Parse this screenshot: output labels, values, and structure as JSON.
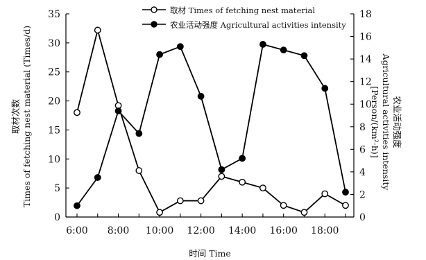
{
  "chart_data": {
    "type": "line",
    "xlabel": "时间 Time",
    "x": [
      "6:00",
      "7:00",
      "8:00",
      "9:00",
      "10:00",
      "11:00",
      "12:00",
      "13:00",
      "14:00",
      "15:00",
      "16:00",
      "17:00",
      "18:00",
      "19:00"
    ],
    "x_tick_labels": [
      "6:00",
      "8:00",
      "10:00",
      "12:00",
      "14:00",
      "16:00",
      "18:00"
    ],
    "y_left": {
      "label": "取材次数\nTimes of fetching nest material (Times/d)",
      "range": [
        0,
        35
      ],
      "ticks": [
        0,
        5,
        10,
        15,
        20,
        25,
        30,
        35
      ]
    },
    "y_right": {
      "label": "农业活动强度\nAgricultural activities intensity\n[Person/(km²·h)]",
      "range": [
        0,
        18
      ],
      "ticks": [
        0,
        2,
        4,
        6,
        8,
        10,
        12,
        14,
        16,
        18
      ]
    },
    "series": [
      {
        "name": "取材 Times of fetching nest material",
        "axis": "left",
        "marker": "open-circle",
        "values": [
          18,
          32.2,
          19.2,
          8,
          0.8,
          2.8,
          2.8,
          7,
          6,
          5,
          2,
          0.8,
          4,
          2
        ]
      },
      {
        "name": "农业活动强度 Agricultural activities intensity",
        "axis": "right",
        "marker": "filled-circle",
        "values": [
          1.0,
          3.5,
          9.4,
          7.4,
          14.4,
          15.1,
          10.7,
          4.2,
          5.2,
          15.3,
          14.8,
          14.3,
          11.4,
          2.2
        ]
      }
    ],
    "grid": false,
    "legend_position": "top-center"
  }
}
